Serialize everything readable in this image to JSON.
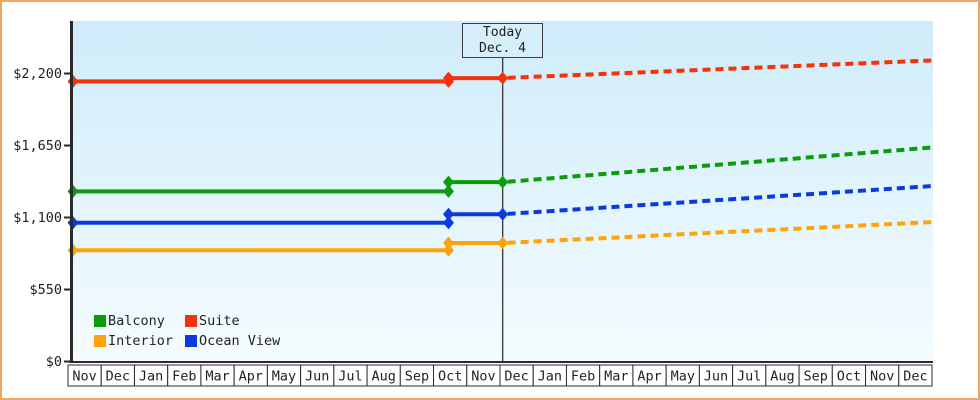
{
  "window": {
    "frame_border_color": "#efa75f",
    "plot_bg_top_color": "#cfecfa",
    "plot_bg_bottom_color": "#f5fcff",
    "axis_color": "#2b2b2b",
    "text_color": "#222222"
  },
  "chart_data": {
    "type": "line",
    "title": "",
    "xlabel": "",
    "ylabel": "",
    "x_axis": {
      "months": [
        "Nov",
        "Dec",
        "Jan",
        "Feb",
        "Mar",
        "Apr",
        "May",
        "Jun",
        "Jul",
        "Aug",
        "Sep",
        "Oct",
        "Nov",
        "Dec",
        "Jan",
        "Feb",
        "Mar",
        "Apr",
        "May",
        "Jun",
        "Jul",
        "Aug",
        "Sep",
        "Oct",
        "Nov",
        "Dec"
      ]
    },
    "y_axis": {
      "tick_values": [
        0,
        550,
        1100,
        1650,
        2200
      ],
      "tick_labels": [
        "$0",
        "$550",
        "$1,100",
        "$1,650",
        "$2,200"
      ],
      "ylim": [
        0,
        2600
      ],
      "grid": false
    },
    "today_marker": {
      "line1": "Today",
      "line2": "Dec. 4",
      "month_index": 13.08
    },
    "price_change_month_index": 11.45,
    "forecast_style": "dashed",
    "legend_position": "bottom-left",
    "series": [
      {
        "name": "Balcony",
        "color": "#0a9c0a",
        "initial_price": 1300,
        "price_after_change": 1370,
        "forecast_end_price": 1635
      },
      {
        "name": "Suite",
        "color": "#f5330a",
        "initial_price": 2140,
        "price_after_change": 2165,
        "forecast_end_price": 2300
      },
      {
        "name": "Interior",
        "color": "#ffa30a",
        "initial_price": 850,
        "price_after_change": 905,
        "forecast_end_price": 1065
      },
      {
        "name": "Ocean View",
        "color": "#0a3ae0",
        "initial_price": 1060,
        "price_after_change": 1125,
        "forecast_end_price": 1340
      }
    ]
  }
}
